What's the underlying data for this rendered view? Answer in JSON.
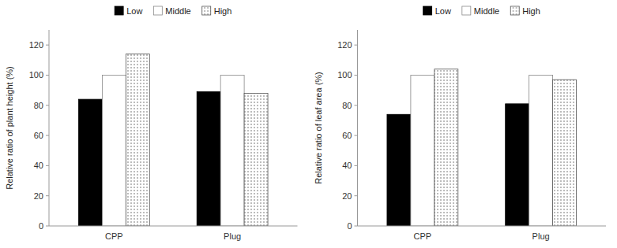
{
  "chart_data": [
    {
      "type": "bar",
      "ylabel": "Relative ratio of plant height (%)",
      "categories": [
        "CPP",
        "Plug"
      ],
      "series": [
        {
          "name": "Low",
          "color": "#000000",
          "values": [
            84,
            89
          ]
        },
        {
          "name": "Middle",
          "color": "#ffffff",
          "values": [
            100,
            100
          ]
        },
        {
          "name": "High",
          "color": "#ffffff",
          "values": [
            114,
            88
          ]
        }
      ],
      "ylim": [
        0,
        130
      ],
      "yticks": [
        0,
        20,
        40,
        60,
        80,
        100,
        120
      ],
      "grid": false,
      "legend": "top"
    },
    {
      "type": "bar",
      "ylabel": "Relative ratio of leaf area (%)",
      "categories": [
        "CPP",
        "Plug"
      ],
      "series": [
        {
          "name": "Low",
          "color": "#000000",
          "values": [
            74,
            81
          ]
        },
        {
          "name": "Middle",
          "color": "#ffffff",
          "values": [
            100,
            100
          ]
        },
        {
          "name": "High",
          "color": "#ffffff",
          "values": [
            104,
            97
          ]
        }
      ],
      "ylim": [
        0,
        130
      ],
      "yticks": [
        0,
        20,
        40,
        60,
        80,
        100,
        120
      ],
      "grid": false,
      "legend": "top"
    }
  ]
}
